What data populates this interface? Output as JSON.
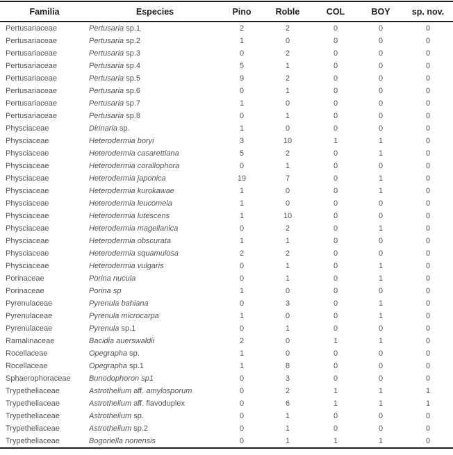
{
  "table": {
    "columns": [
      {
        "key": "familia",
        "label": "Familia"
      },
      {
        "key": "especies",
        "label": "Especies"
      },
      {
        "key": "pino",
        "label": "Pino"
      },
      {
        "key": "roble",
        "label": "Roble"
      },
      {
        "key": "col",
        "label": "COL"
      },
      {
        "key": "boy",
        "label": "BOY"
      },
      {
        "key": "spnov",
        "label": "sp. nov."
      }
    ],
    "rows": [
      {
        "familia": "Pertusariaceae",
        "especies": [
          {
            "t": "Pertusaria",
            "i": true
          },
          {
            "t": " sp.1",
            "i": false
          }
        ],
        "values": [
          2,
          2,
          0,
          0,
          0
        ]
      },
      {
        "familia": "Pertusariaceae",
        "especies": [
          {
            "t": "Pertusaria",
            "i": true
          },
          {
            "t": " sp.2",
            "i": false
          }
        ],
        "values": [
          1,
          0,
          0,
          0,
          0
        ]
      },
      {
        "familia": "Pertusariaceae",
        "especies": [
          {
            "t": "Pertusaria",
            "i": true
          },
          {
            "t": " sp.3",
            "i": false
          }
        ],
        "values": [
          0,
          2,
          0,
          0,
          0
        ]
      },
      {
        "familia": "Pertusariaceae",
        "especies": [
          {
            "t": "Pertusaria",
            "i": true
          },
          {
            "t": " sp.4",
            "i": false
          }
        ],
        "values": [
          5,
          1,
          0,
          0,
          0
        ]
      },
      {
        "familia": "Pertusariaceae",
        "especies": [
          {
            "t": "Pertusaria",
            "i": true
          },
          {
            "t": " sp.5",
            "i": false
          }
        ],
        "values": [
          9,
          2,
          0,
          0,
          0
        ]
      },
      {
        "familia": "Pertusariaceae",
        "especies": [
          {
            "t": "Pertusaria",
            "i": true
          },
          {
            "t": " sp.6",
            "i": false
          }
        ],
        "values": [
          0,
          1,
          0,
          0,
          0
        ]
      },
      {
        "familia": "Pertusariaceae",
        "especies": [
          {
            "t": "Pertusaria",
            "i": true
          },
          {
            "t": " sp.7",
            "i": false
          }
        ],
        "values": [
          1,
          0,
          0,
          0,
          0
        ]
      },
      {
        "familia": "Pertusariaceae",
        "especies": [
          {
            "t": "Pertusaria",
            "i": true
          },
          {
            "t": " sp.8",
            "i": false
          }
        ],
        "values": [
          0,
          1,
          0,
          0,
          0
        ]
      },
      {
        "familia": "Physciaceae",
        "especies": [
          {
            "t": "Dirinaria",
            "i": true
          },
          {
            "t": " sp.",
            "i": false
          }
        ],
        "values": [
          1,
          0,
          0,
          0,
          0
        ]
      },
      {
        "familia": "Physciaceae",
        "especies": [
          {
            "t": "Heterodermia boryi",
            "i": true
          }
        ],
        "values": [
          3,
          10,
          1,
          1,
          0
        ]
      },
      {
        "familia": "Physciaceae",
        "especies": [
          {
            "t": "Heterodermia casarettiana",
            "i": true
          }
        ],
        "values": [
          5,
          2,
          0,
          1,
          0
        ]
      },
      {
        "familia": "Physciaceae",
        "especies": [
          {
            "t": "Heterodermia corallophora",
            "i": true
          }
        ],
        "values": [
          0,
          1,
          0,
          0,
          0
        ]
      },
      {
        "familia": "Physciaceae",
        "especies": [
          {
            "t": "Heterodermia japonica",
            "i": true
          }
        ],
        "values": [
          19,
          7,
          0,
          1,
          0
        ]
      },
      {
        "familia": "Physciaceae",
        "especies": [
          {
            "t": "Heterodermia kurokawae",
            "i": true
          }
        ],
        "values": [
          1,
          0,
          0,
          1,
          0
        ]
      },
      {
        "familia": "Physciaceae",
        "especies": [
          {
            "t": "Heterodermia leucomela",
            "i": true
          }
        ],
        "values": [
          1,
          0,
          0,
          0,
          0
        ]
      },
      {
        "familia": "Physciaceae",
        "especies": [
          {
            "t": "Heterodermia lutescens",
            "i": true
          }
        ],
        "values": [
          1,
          10,
          0,
          0,
          0
        ]
      },
      {
        "familia": "Physciaceae",
        "especies": [
          {
            "t": "Heterodermia magellanica",
            "i": true
          }
        ],
        "values": [
          0,
          2,
          0,
          1,
          0
        ]
      },
      {
        "familia": "Physciaceae",
        "especies": [
          {
            "t": "Heterodermia obscurata",
            "i": true
          }
        ],
        "values": [
          1,
          1,
          0,
          0,
          0
        ]
      },
      {
        "familia": "Physciaceae",
        "especies": [
          {
            "t": "Heterodermia squamulosa",
            "i": true
          }
        ],
        "values": [
          2,
          2,
          0,
          0,
          0
        ]
      },
      {
        "familia": "Physciaceae",
        "especies": [
          {
            "t": "Heterodermia vulgaris",
            "i": true
          }
        ],
        "values": [
          0,
          1,
          0,
          1,
          0
        ]
      },
      {
        "familia": "Porinaceae",
        "especies": [
          {
            "t": "Porina nucula",
            "i": true
          }
        ],
        "values": [
          0,
          1,
          0,
          1,
          0
        ]
      },
      {
        "familia": "Porinaceae",
        "especies": [
          {
            "t": "Porina sp",
            "i": true
          }
        ],
        "values": [
          1,
          0,
          0,
          0,
          0
        ]
      },
      {
        "familia": "Pyrenulaceae",
        "especies": [
          {
            "t": "Pyrenula bahiana",
            "i": true
          }
        ],
        "values": [
          0,
          3,
          0,
          1,
          0
        ]
      },
      {
        "familia": "Pyrenulaceae",
        "especies": [
          {
            "t": "Pyrenula microcarpa",
            "i": true
          }
        ],
        "values": [
          1,
          0,
          0,
          1,
          0
        ]
      },
      {
        "familia": "Pyrenulaceae",
        "especies": [
          {
            "t": "Pyrenula",
            "i": true
          },
          {
            "t": " sp.1",
            "i": false
          }
        ],
        "values": [
          0,
          1,
          0,
          0,
          0
        ]
      },
      {
        "familia": "Ramalinaceae",
        "especies": [
          {
            "t": "Bacidia auerswaldii",
            "i": true
          }
        ],
        "values": [
          2,
          0,
          1,
          1,
          0
        ]
      },
      {
        "familia": "Rocellaceae",
        "especies": [
          {
            "t": "Opegrapha",
            "i": true
          },
          {
            "t": " sp.",
            "i": false
          }
        ],
        "values": [
          1,
          0,
          0,
          0,
          0
        ]
      },
      {
        "familia": "Rocellaceae",
        "especies": [
          {
            "t": "Opegrapha",
            "i": true
          },
          {
            "t": " sp.1",
            "i": false
          }
        ],
        "values": [
          1,
          8,
          0,
          0,
          0
        ]
      },
      {
        "familia": "Sphaerophoraceae",
        "especies": [
          {
            "t": "Bunodophoron sp1",
            "i": true
          }
        ],
        "values": [
          0,
          3,
          0,
          0,
          0
        ]
      },
      {
        "familia": "Trypetheliaceae",
        "especies": [
          {
            "t": "Astrothelium",
            "i": true
          },
          {
            "t": " aff. ",
            "i": false
          },
          {
            "t": "amylosporum",
            "i": true
          }
        ],
        "values": [
          0,
          2,
          1,
          1,
          1
        ]
      },
      {
        "familia": "Trypetheliaceae",
        "especies": [
          {
            "t": "Astrothelium",
            "i": true
          },
          {
            "t": " aff. flavoduplex",
            "i": false
          }
        ],
        "values": [
          0,
          6,
          1,
          1,
          1
        ]
      },
      {
        "familia": "Trypetheliaceae",
        "especies": [
          {
            "t": "Astrothelium",
            "i": true
          },
          {
            "t": " sp.",
            "i": false
          }
        ],
        "values": [
          0,
          1,
          0,
          0,
          0
        ]
      },
      {
        "familia": "Trypetheliaceae",
        "especies": [
          {
            "t": "Astrothelium",
            "i": true
          },
          {
            "t": " sp.2",
            "i": false
          }
        ],
        "values": [
          0,
          1,
          0,
          0,
          0
        ]
      },
      {
        "familia": "Trypetheliaceae",
        "especies": [
          {
            "t": "Bogoriella nonensis",
            "i": true
          }
        ],
        "values": [
          0,
          1,
          1,
          1,
          0
        ]
      }
    ]
  },
  "colors": {
    "background": "#ffffff",
    "header_text": "#202020",
    "body_text": "#4f5255",
    "rule": "#1e1e1e"
  }
}
